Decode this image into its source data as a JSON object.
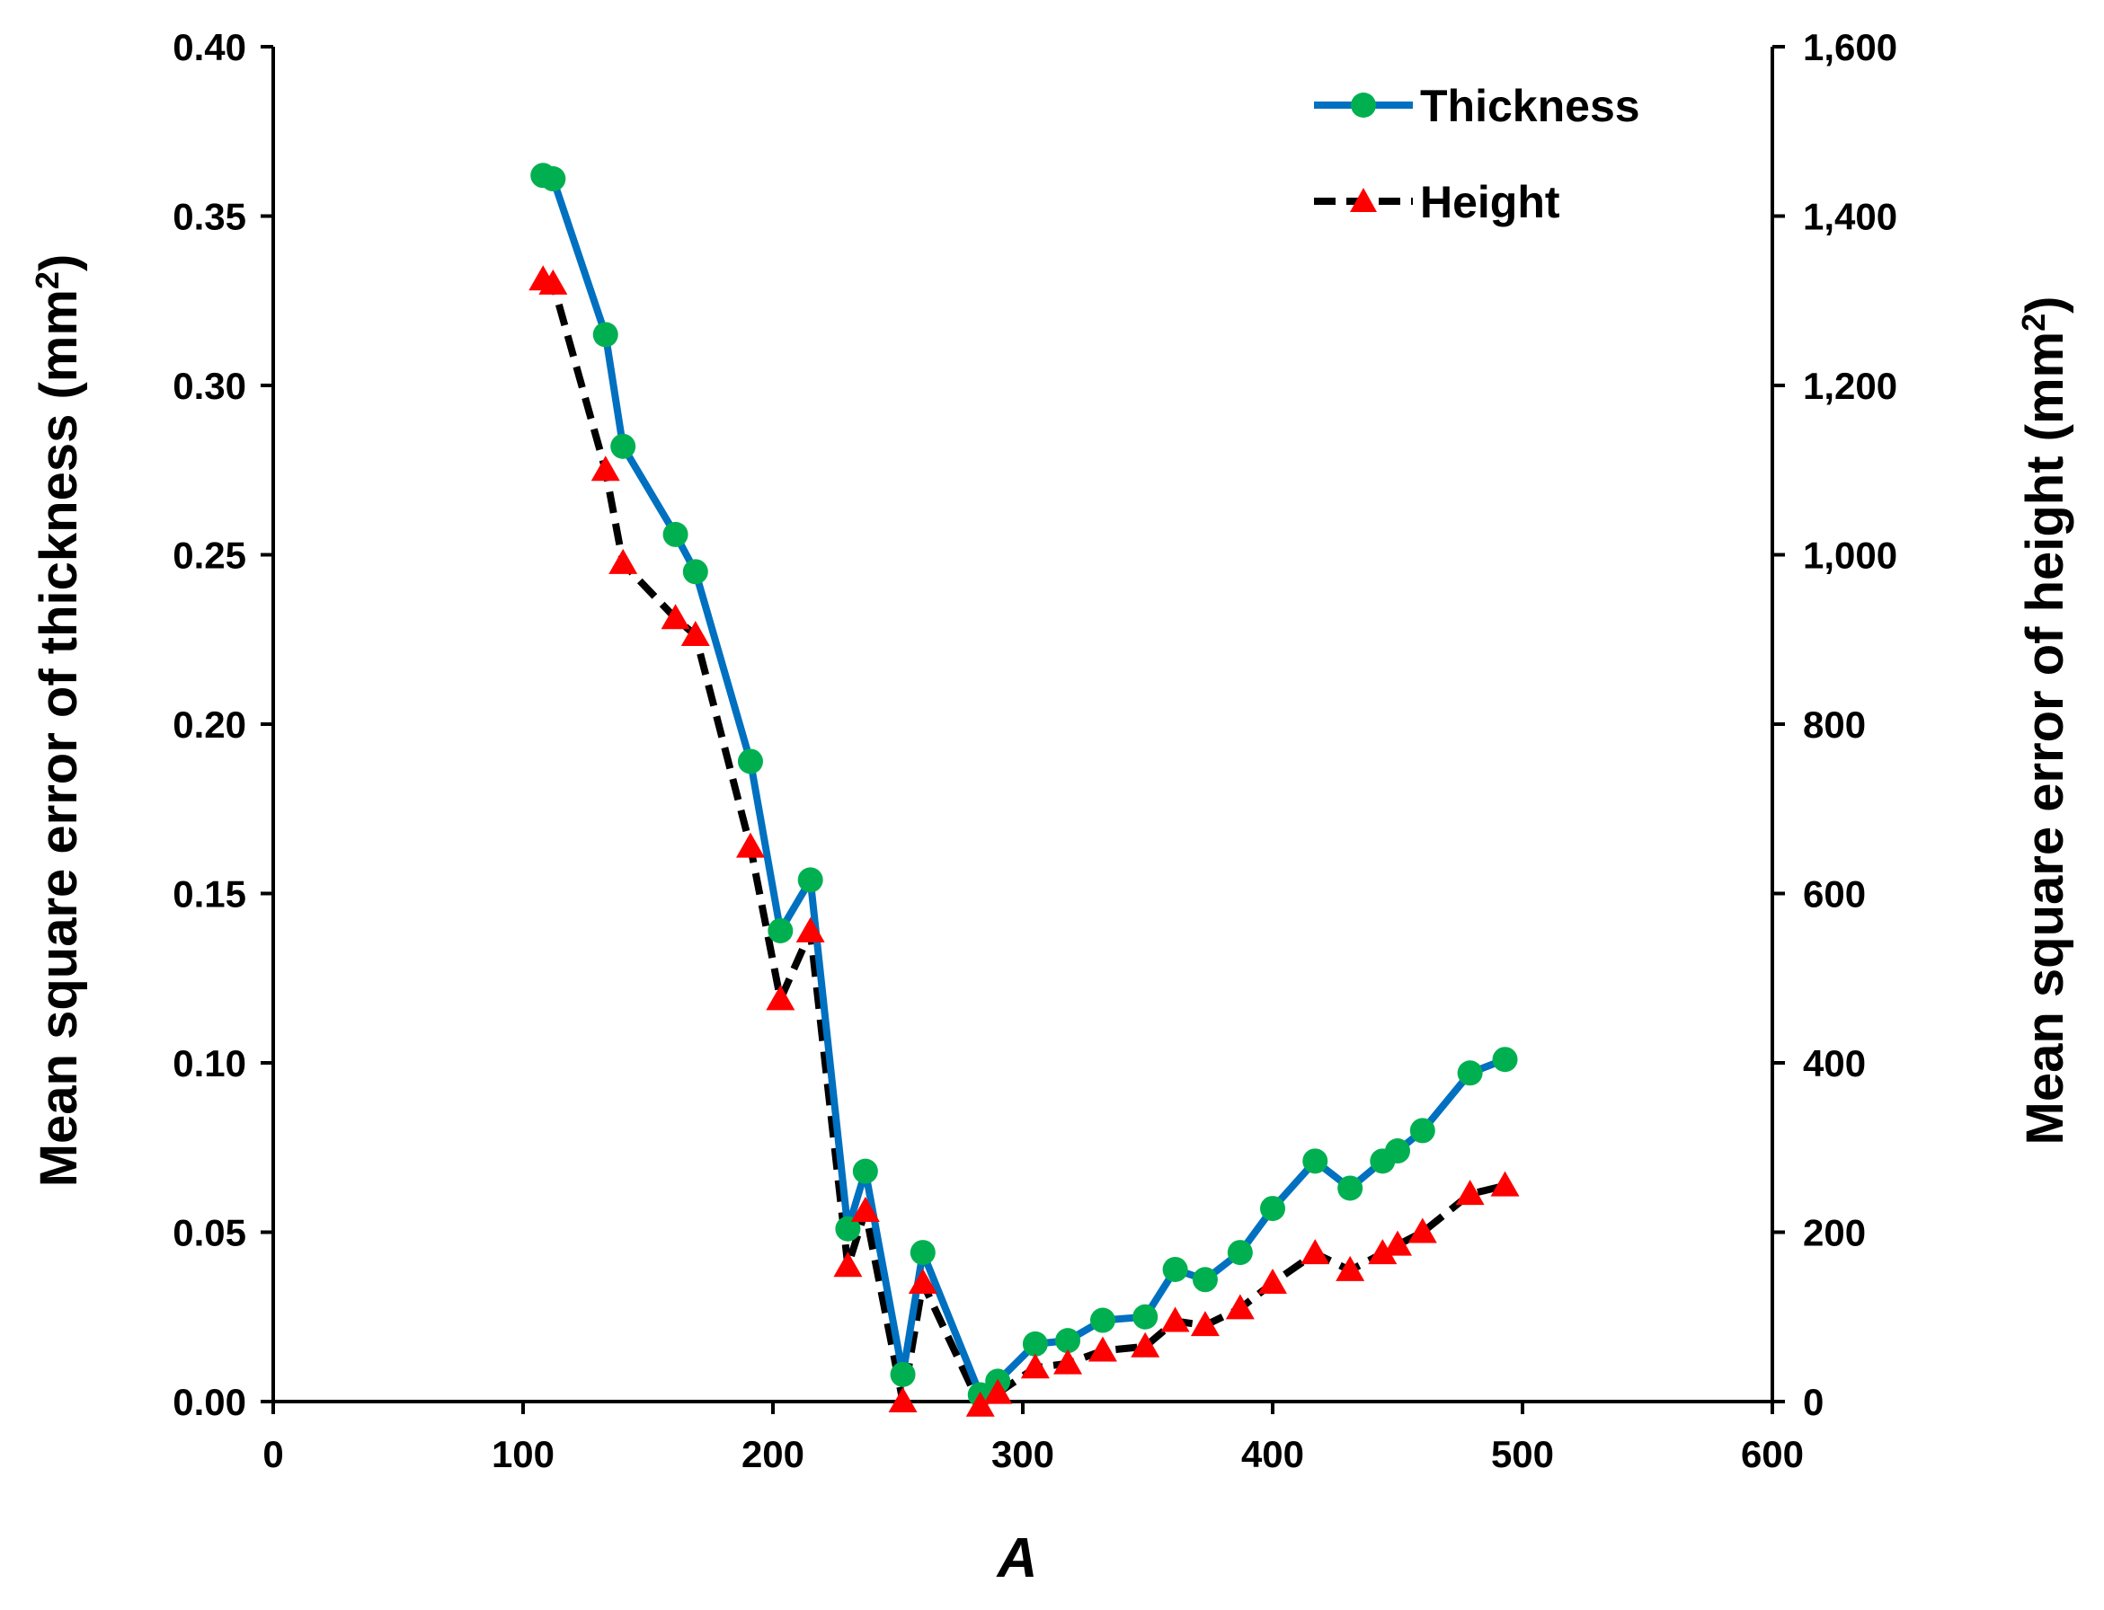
{
  "chart_data": {
    "type": "line",
    "xlabel": "A",
    "ylabel_left_main": "Mean square error of thickness (mm",
    "ylabel_left_sup": "2",
    "ylabel_left_close": ")",
    "ylabel_right_main": "Mean square error of height (mm",
    "ylabel_right_sup": "2",
    "ylabel_right_close": ")",
    "xlim": [
      0,
      600
    ],
    "ylim_left": [
      0,
      0.4
    ],
    "ylim_right": [
      0,
      1600
    ],
    "x_ticks": [
      0,
      100,
      200,
      300,
      400,
      500,
      600
    ],
    "x_tick_labels": [
      "0",
      "100",
      "200",
      "300",
      "400",
      "500",
      "600"
    ],
    "y_left_ticks": [
      0,
      0.05,
      0.1,
      0.15,
      0.2,
      0.25,
      0.3,
      0.35,
      0.4
    ],
    "y_left_tick_labels": [
      "0.00",
      "0.05",
      "0.10",
      "0.15",
      "0.20",
      "0.25",
      "0.30",
      "0.35",
      "0.40"
    ],
    "y_right_ticks": [
      0,
      200,
      400,
      600,
      800,
      1000,
      1200,
      1400,
      1600
    ],
    "y_right_tick_labels": [
      "0",
      "200",
      "400",
      "600",
      "800",
      "1,000",
      "1,200",
      "1,400",
      "1,600"
    ],
    "legend_position": "top-right",
    "series": [
      {
        "name": "Thickness",
        "axis": "left",
        "line_color": "#0070C0",
        "marker_color": "#00B050",
        "marker": "circle",
        "x": [
          108,
          112,
          133,
          140,
          161,
          169,
          191,
          203,
          215,
          230,
          237,
          252,
          260,
          283,
          290,
          305,
          318,
          332,
          349,
          361,
          373,
          387,
          400,
          417,
          431,
          444,
          450,
          460,
          479,
          493
        ],
        "y": [
          0.362,
          0.361,
          0.315,
          0.282,
          0.256,
          0.245,
          0.189,
          0.139,
          0.154,
          0.051,
          0.068,
          0.008,
          0.044,
          0.002,
          0.006,
          0.017,
          0.018,
          0.024,
          0.025,
          0.039,
          0.036,
          0.044,
          0.057,
          0.071,
          0.063,
          0.071,
          0.074,
          0.08,
          0.097,
          0.101
        ]
      },
      {
        "name": "Height",
        "axis": "right",
        "line_color": "#000000",
        "marker_color": "#FF0000",
        "marker": "triangle",
        "x": [
          108,
          112,
          133,
          140,
          161,
          169,
          191,
          203,
          215,
          230,
          237,
          252,
          260,
          283,
          290,
          305,
          318,
          332,
          349,
          361,
          373,
          387,
          400,
          417,
          431,
          444,
          450,
          460,
          479,
          493
        ],
        "y": [
          1325,
          1320,
          1100,
          990,
          925,
          905,
          655,
          475,
          555,
          160,
          225,
          0,
          140,
          -5,
          10,
          40,
          45,
          60,
          65,
          95,
          90,
          110,
          140,
          175,
          155,
          175,
          185,
          200,
          245,
          255
        ]
      }
    ]
  }
}
